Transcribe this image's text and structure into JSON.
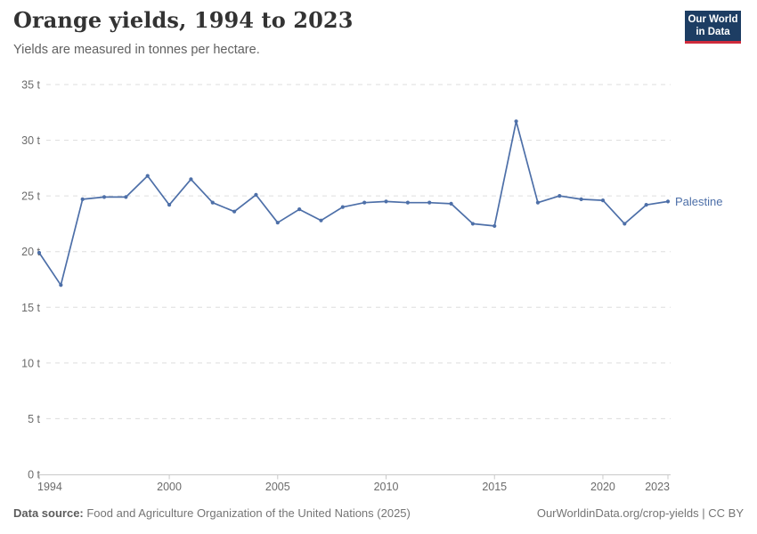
{
  "header": {
    "title": "Orange yields, 1994 to 2023",
    "subtitle": "Yields are measured in tonnes per hectare.",
    "logo": {
      "line1": "Our World",
      "line2": "in Data",
      "bg_color": "#1d3d63",
      "accent_color": "#cf2b3c"
    }
  },
  "chart_data": {
    "type": "line",
    "title": "Orange yields, 1994 to 2023",
    "subtitle": "Yields are measured in tonnes per hectare.",
    "xlabel": "",
    "ylabel": "tonnes per hectare",
    "unit_suffix": " t",
    "x": [
      1994,
      1995,
      1996,
      1997,
      1998,
      1999,
      2000,
      2001,
      2002,
      2003,
      2004,
      2005,
      2006,
      2007,
      2008,
      2009,
      2010,
      2011,
      2012,
      2013,
      2014,
      2015,
      2016,
      2017,
      2018,
      2019,
      2020,
      2021,
      2022,
      2023
    ],
    "series": [
      {
        "name": "Palestine",
        "color": "#4d6fa8",
        "values": [
          19.9,
          17.0,
          24.7,
          24.9,
          24.9,
          26.8,
          24.2,
          26.5,
          24.4,
          23.6,
          25.1,
          22.6,
          23.8,
          22.8,
          24.0,
          24.4,
          24.5,
          24.4,
          24.4,
          24.3,
          22.5,
          22.3,
          31.7,
          24.4,
          25.0,
          24.7,
          24.6,
          22.5,
          24.2,
          24.5
        ]
      }
    ],
    "ylim": [
      0,
      35
    ],
    "yticks": [
      0,
      5,
      10,
      15,
      20,
      25,
      30,
      35
    ],
    "xticks": [
      1994,
      2000,
      2005,
      2010,
      2015,
      2020,
      2023
    ],
    "grid": "horizontal-dashed",
    "gridline_color": "#dddddd",
    "axis_color": "#c9c9c9",
    "tick_label_color": "#6b6b6b",
    "legend_position": "end-of-line-label"
  },
  "footer": {
    "source_label": "Data source:",
    "source_value": " Food and Agriculture Organization of the United Nations (2025)",
    "credit": "OurWorldinData.org/crop-yields | CC BY"
  }
}
